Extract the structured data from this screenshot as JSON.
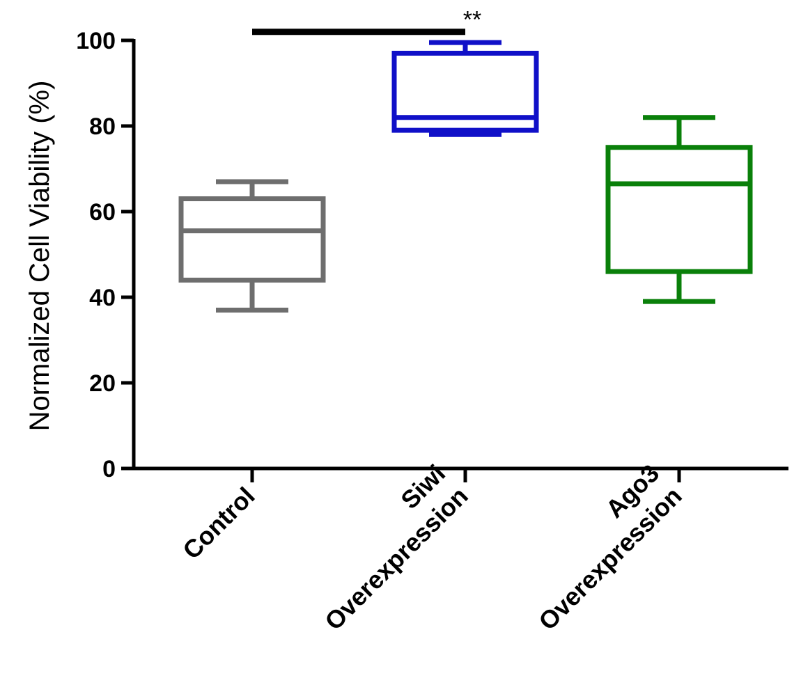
{
  "chart_data": {
    "type": "boxplot",
    "title": "",
    "xlabel": "",
    "ylabel": "Normalized Cell Viability (%)",
    "ylim": [
      0,
      100
    ],
    "yticks": [
      0,
      20,
      40,
      60,
      80,
      100
    ],
    "categories": [
      {
        "lines": [
          "Control"
        ]
      },
      {
        "lines": [
          "Siwi",
          "Overexpression"
        ]
      },
      {
        "lines": [
          "Ago3",
          "Overexpression"
        ]
      }
    ],
    "boxes": [
      {
        "name": "Control",
        "min": 37,
        "q1": 44,
        "median": 55.5,
        "q3": 63,
        "max": 67,
        "color": "#6e6e6e"
      },
      {
        "name": "Siwi Overexpression",
        "min": 78,
        "q1": 79,
        "median": 82,
        "q3": 97,
        "max": 99.5,
        "color": "#1010c8"
      },
      {
        "name": "Ago3 Overexpression",
        "min": 39,
        "q1": 46,
        "median": 66.5,
        "q3": 75,
        "max": 82,
        "color": "#0a800a"
      }
    ],
    "significance": [
      {
        "from": 0,
        "to": 1,
        "y": 102,
        "label": "**"
      }
    ]
  }
}
